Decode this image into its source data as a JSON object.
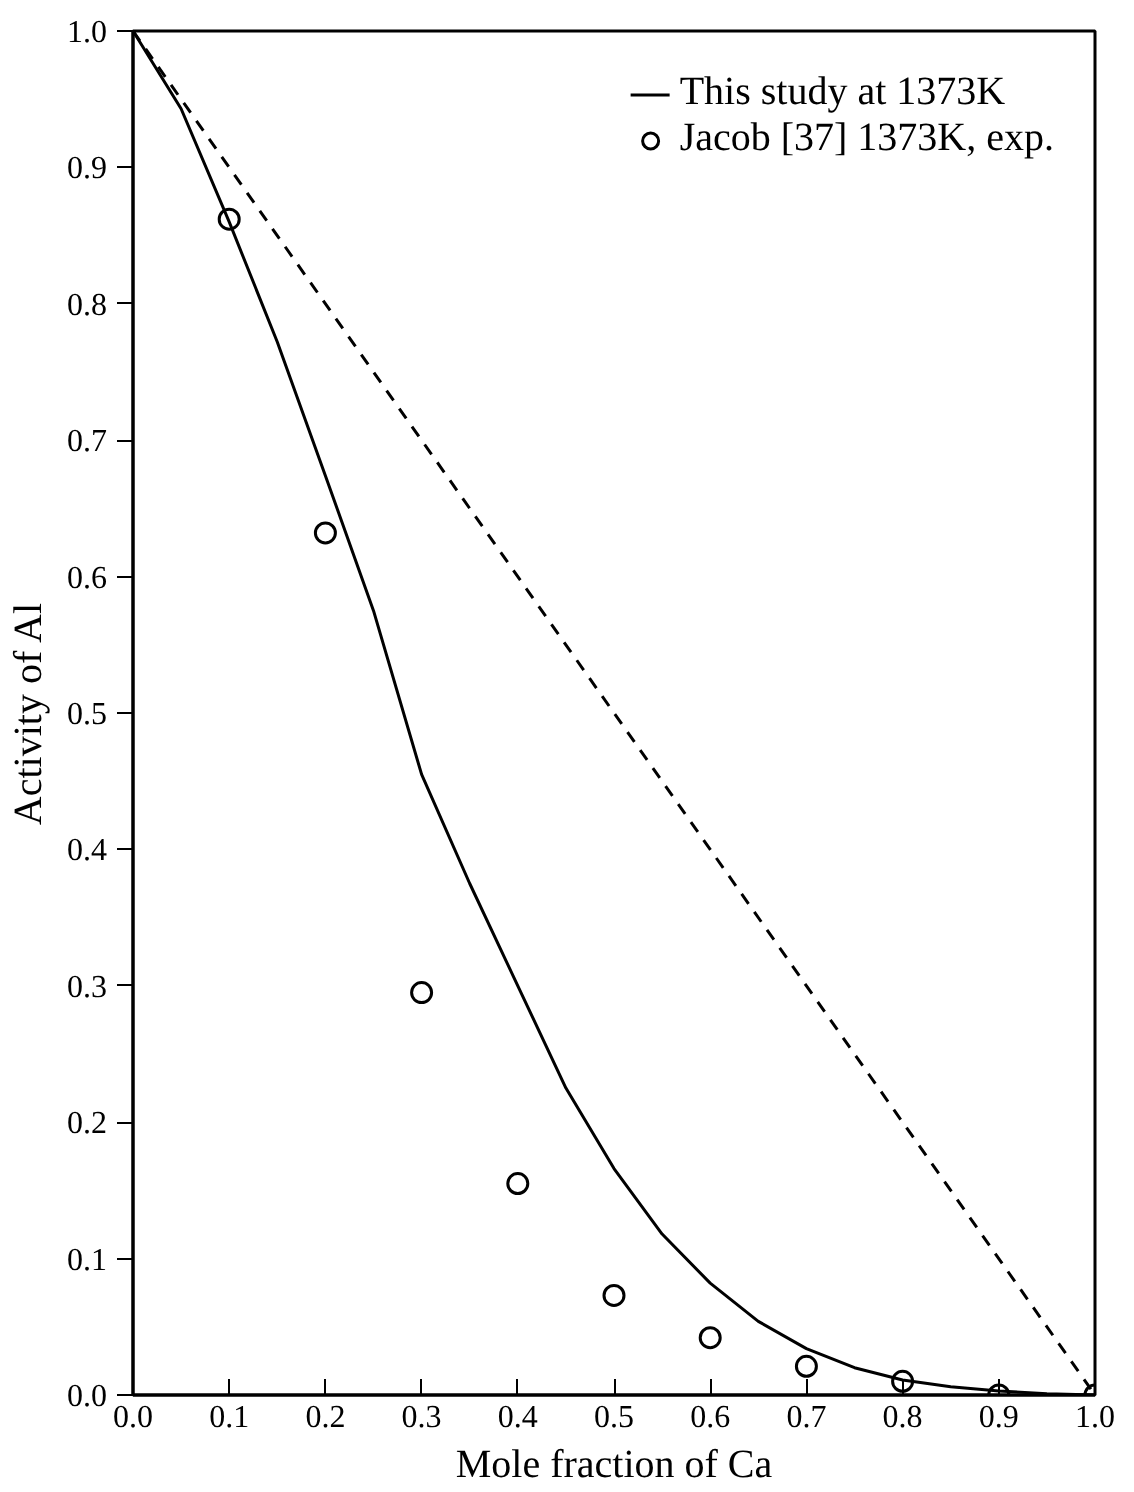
{
  "chart_data": {
    "type": "line",
    "xlabel": "Mole fraction of Ca",
    "ylabel": "Activity of Al",
    "xlim": [
      0,
      1
    ],
    "ylim": [
      0,
      1
    ],
    "xticks": [
      {
        "value": 0,
        "label": "0.0"
      },
      0.1,
      0.2,
      0.3,
      0.4,
      0.5,
      0.6,
      0.7,
      0.8,
      0.9,
      {
        "value": 1,
        "label": "1.0"
      }
    ],
    "yticks": [
      {
        "value": 0,
        "label": "0.0"
      },
      0.1,
      0.2,
      0.3,
      0.4,
      0.5,
      0.6,
      0.7,
      0.8,
      0.9,
      {
        "value": 1,
        "label": "1.0"
      }
    ],
    "grid": false,
    "legend": "top right",
    "series": [
      {
        "name": "This study at 1373K",
        "color": "#000000",
        "line_style": "solid",
        "marker": "none",
        "x": [
          0,
          0.05,
          0.1,
          0.15,
          0.2,
          0.25,
          0.3,
          0.35,
          0.4,
          0.45,
          0.5,
          0.55,
          0.6,
          0.65,
          0.7,
          0.75,
          0.8,
          0.85,
          0.9,
          0.95,
          1.0
        ],
        "values": [
          1.0,
          0.943,
          0.86,
          0.772,
          0.674,
          0.575,
          0.455,
          0.375,
          0.3,
          0.225,
          0.166,
          0.118,
          0.082,
          0.054,
          0.034,
          0.02,
          0.011,
          0.006,
          0.003,
          0.001,
          0
        ]
      },
      {
        "name": "Jacob [37] 1373K, exp.",
        "type": "scatter",
        "color": "#000000",
        "marker": "circle",
        "x": [
          0.1,
          0.2,
          0.3,
          0.4,
          0.5,
          0.6,
          0.7,
          0.8,
          0.9,
          1.0
        ],
        "values": [
          0.862,
          0.632,
          0.295,
          0.155,
          0.073,
          0.042,
          0.021,
          0.01,
          0.0,
          0.0
        ]
      },
      {
        "color": "#000000",
        "line_style": "dashed",
        "marker": "none",
        "x": [
          0,
          1
        ],
        "values": [
          1,
          0
        ]
      }
    ]
  }
}
